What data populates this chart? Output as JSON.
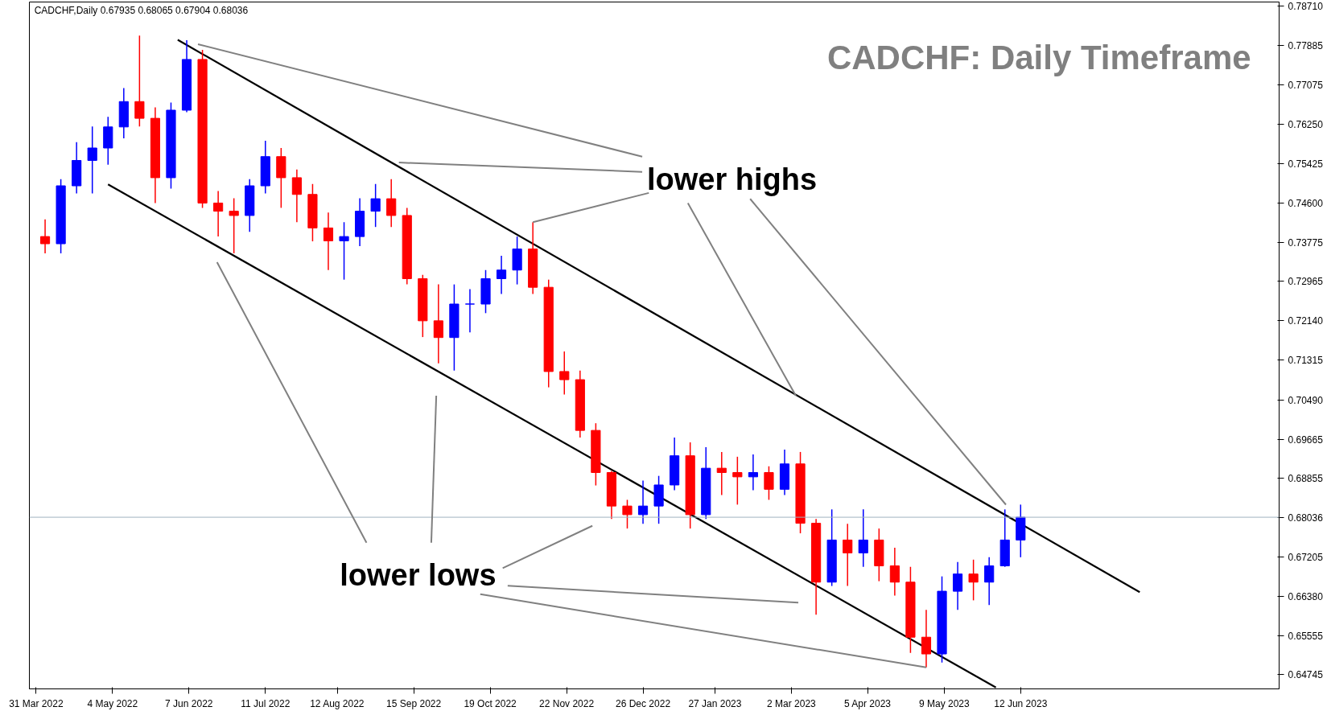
{
  "chart_data": {
    "type": "candlestick",
    "title": "CADCHF: Daily Timeframe",
    "annotations": [
      "CADCHF,Daily  0.67935 0.68065 0.67904 0.68036",
      {
        "text": "lower highs",
        "x": "2022-11-07",
        "y": 0.742
      },
      {
        "text": "lower lows",
        "x": "2023-05-01",
        "y": 0.649
      }
    ],
    "x": [
      "2022-04-04",
      "2022-04-11",
      "2022-04-18",
      "2022-04-25",
      "2022-05-02",
      "2022-05-09",
      "2022-05-16",
      "2022-05-23",
      "2022-05-30",
      "2022-06-06",
      "2022-06-13",
      "2022-06-20",
      "2022-06-27",
      "2022-07-04",
      "2022-07-11",
      "2022-07-18",
      "2022-07-25",
      "2022-08-01",
      "2022-08-08",
      "2022-08-15",
      "2022-08-22",
      "2022-08-29",
      "2022-09-05",
      "2022-09-12",
      "2022-09-19",
      "2022-09-26",
      "2022-10-03",
      "2022-10-10",
      "2022-10-17",
      "2022-10-24",
      "2022-10-31",
      "2022-11-07",
      "2022-11-14",
      "2022-11-21",
      "2022-11-28",
      "2022-12-05",
      "2022-12-12",
      "2022-12-19",
      "2022-12-26",
      "2023-01-02",
      "2023-01-09",
      "2023-01-16",
      "2023-01-23",
      "2023-01-30",
      "2023-02-06",
      "2023-02-13",
      "2023-02-20",
      "2023-02-27",
      "2023-03-06",
      "2023-03-13",
      "2023-03-20",
      "2023-03-27",
      "2023-04-03",
      "2023-04-10",
      "2023-04-17",
      "2023-04-24",
      "2023-05-01",
      "2023-05-08",
      "2023-05-15",
      "2023-05-22",
      "2023-05-29",
      "2023-06-05",
      "2023-06-12"
    ],
    "ohlc": [
      [
        0.739,
        0.7426,
        0.7355,
        0.7375
      ],
      [
        0.7375,
        0.751,
        0.7355,
        0.7496
      ],
      [
        0.7496,
        0.7587,
        0.748,
        0.7549
      ],
      [
        0.7549,
        0.762,
        0.748,
        0.7575
      ],
      [
        0.7575,
        0.764,
        0.754,
        0.7619
      ],
      [
        0.7619,
        0.77,
        0.7595,
        0.7672
      ],
      [
        0.7672,
        0.781,
        0.762,
        0.7637
      ],
      [
        0.7637,
        0.766,
        0.746,
        0.7513
      ],
      [
        0.7513,
        0.767,
        0.749,
        0.7654
      ],
      [
        0.7654,
        0.78,
        0.765,
        0.776
      ],
      [
        0.776,
        0.778,
        0.745,
        0.746
      ],
      [
        0.746,
        0.7485,
        0.739,
        0.7443
      ],
      [
        0.7443,
        0.747,
        0.7355,
        0.7434
      ],
      [
        0.7434,
        0.751,
        0.74,
        0.7496
      ],
      [
        0.7496,
        0.759,
        0.748,
        0.7557
      ],
      [
        0.7557,
        0.7575,
        0.745,
        0.7513
      ],
      [
        0.7513,
        0.753,
        0.742,
        0.7478
      ],
      [
        0.7478,
        0.75,
        0.738,
        0.7408
      ],
      [
        0.7408,
        0.744,
        0.732,
        0.7381
      ],
      [
        0.7381,
        0.742,
        0.73,
        0.739
      ],
      [
        0.739,
        0.747,
        0.737,
        0.7443
      ],
      [
        0.7443,
        0.75,
        0.741,
        0.7469
      ],
      [
        0.7469,
        0.751,
        0.741,
        0.7434
      ],
      [
        0.7434,
        0.745,
        0.729,
        0.7302
      ],
      [
        0.7302,
        0.731,
        0.718,
        0.7214
      ],
      [
        0.7214,
        0.729,
        0.7125,
        0.7179
      ],
      [
        0.7179,
        0.729,
        0.711,
        0.7249
      ],
      [
        0.7249,
        0.728,
        0.719,
        0.7249
      ],
      [
        0.7249,
        0.732,
        0.723,
        0.7302
      ],
      [
        0.7302,
        0.735,
        0.727,
        0.732
      ],
      [
        0.732,
        0.739,
        0.729,
        0.7364
      ],
      [
        0.7364,
        0.742,
        0.727,
        0.7284
      ],
      [
        0.7284,
        0.73,
        0.7075,
        0.7108
      ],
      [
        0.7108,
        0.715,
        0.706,
        0.7091
      ],
      [
        0.7091,
        0.711,
        0.697,
        0.6985
      ],
      [
        0.6985,
        0.7,
        0.687,
        0.6897
      ],
      [
        0.6897,
        0.69,
        0.68,
        0.6827
      ],
      [
        0.6827,
        0.684,
        0.678,
        0.6809
      ],
      [
        0.6809,
        0.688,
        0.679,
        0.6827
      ],
      [
        0.6827,
        0.689,
        0.679,
        0.6871
      ],
      [
        0.6871,
        0.697,
        0.686,
        0.6932
      ],
      [
        0.6932,
        0.696,
        0.678,
        0.6809
      ],
      [
        0.6809,
        0.695,
        0.68,
        0.6906
      ],
      [
        0.6906,
        0.694,
        0.685,
        0.6897
      ],
      [
        0.6897,
        0.693,
        0.683,
        0.6888
      ],
      [
        0.6888,
        0.6935,
        0.686,
        0.6897
      ],
      [
        0.6897,
        0.691,
        0.684,
        0.6862
      ],
      [
        0.6862,
        0.6945,
        0.685,
        0.6915
      ],
      [
        0.6915,
        0.694,
        0.677,
        0.6791
      ],
      [
        0.6791,
        0.68,
        0.66,
        0.6668
      ],
      [
        0.6668,
        0.682,
        0.666,
        0.6756
      ],
      [
        0.6756,
        0.679,
        0.666,
        0.6729
      ],
      [
        0.6729,
        0.682,
        0.67,
        0.6756
      ],
      [
        0.6756,
        0.678,
        0.667,
        0.6702
      ],
      [
        0.6702,
        0.674,
        0.664,
        0.6668
      ],
      [
        0.6668,
        0.67,
        0.652,
        0.6553
      ],
      [
        0.6553,
        0.661,
        0.649,
        0.6518
      ],
      [
        0.6518,
        0.668,
        0.65,
        0.6649
      ],
      [
        0.6649,
        0.671,
        0.661,
        0.6685
      ],
      [
        0.6685,
        0.6715,
        0.663,
        0.6668
      ],
      [
        0.6668,
        0.672,
        0.662,
        0.6702
      ],
      [
        0.6702,
        0.682,
        0.67,
        0.6756
      ],
      [
        0.6756,
        0.683,
        0.672,
        0.68036
      ]
    ],
    "colors": [
      "#ff0000",
      "#0000ff",
      "#0000ff",
      "#0000ff",
      "#0000ff",
      "#0000ff",
      "#ff0000",
      "#ff0000",
      "#0000ff",
      "#0000ff",
      "#ff0000",
      "#ff0000",
      "#ff0000",
      "#0000ff",
      "#0000ff",
      "#ff0000",
      "#ff0000",
      "#ff0000",
      "#ff0000",
      "#0000ff",
      "#0000ff",
      "#0000ff",
      "#ff0000",
      "#ff0000",
      "#ff0000",
      "#ff0000",
      "#0000ff",
      "#0000ff",
      "#0000ff",
      "#0000ff",
      "#0000ff",
      "#ff0000",
      "#ff0000",
      "#ff0000",
      "#ff0000",
      "#ff0000",
      "#ff0000",
      "#ff0000",
      "#0000ff",
      "#0000ff",
      "#0000ff",
      "#ff0000",
      "#0000ff",
      "#ff0000",
      "#ff0000",
      "#0000ff",
      "#ff0000",
      "#0000ff",
      "#ff0000",
      "#ff0000",
      "#0000ff",
      "#ff0000",
      "#0000ff",
      "#ff0000",
      "#ff0000",
      "#ff0000",
      "#ff0000",
      "#0000ff",
      "#0000ff",
      "#ff0000",
      "#0000ff",
      "#0000ff",
      "#0000ff"
    ],
    "series": [
      {
        "type": "line",
        "color": "#000000",
        "x": [
          "2022-06-02",
          "2023-08-04"
        ],
        "values": [
          0.7801,
          0.6647
        ]
      },
      {
        "type": "line",
        "color": "#000000",
        "x": [
          "2022-05-02",
          "2023-06-01"
        ],
        "values": [
          0.7499,
          0.6448
        ]
      }
    ],
    "ref_lines": [
      {
        "axis": "y",
        "value": 0.68036,
        "label": "0.68036",
        "color": "#a0b4c0"
      }
    ],
    "xlim": [
      "2022-03-28",
      "2023-10-05"
    ],
    "xticks": [
      {
        "value": "2022-03-31",
        "label": "31 Mar 2022"
      },
      {
        "value": "2022-05-04",
        "label": "4 May 2022"
      },
      {
        "value": "2022-06-07",
        "label": "7 Jun 2022"
      },
      {
        "value": "2022-07-11",
        "label": "11 Jul 2022"
      },
      {
        "value": "2022-08-12",
        "label": "12 Aug 2022"
      },
      {
        "value": "2022-09-15",
        "label": "15 Sep 2022"
      },
      {
        "value": "2022-10-19",
        "label": "19 Oct 2022"
      },
      {
        "value": "2022-11-22",
        "label": "22 Nov 2022"
      },
      {
        "value": "2022-12-26",
        "label": "26 Dec 2022"
      },
      {
        "value": "2023-01-27",
        "label": "27 Jan 2023"
      },
      {
        "value": "2023-03-02",
        "label": "2 Mar 2023"
      },
      {
        "value": "2023-04-05",
        "label": "5 Apr 2023"
      },
      {
        "value": "2023-05-09",
        "label": "9 May 2023"
      },
      {
        "value": "2023-06-12",
        "label": "12 Jun 2023"
      }
    ],
    "ylim": [
      0.6445,
      0.788
    ],
    "yticks": [
      {
        "value": 0.64745,
        "label": "0.64745"
      },
      {
        "value": 0.65555,
        "label": "0.65555"
      },
      {
        "value": 0.6638,
        "label": "0.66380"
      },
      {
        "value": 0.67205,
        "label": "0.67205"
      },
      {
        "value": 0.68855,
        "label": "0.68855"
      },
      {
        "value": 0.69665,
        "label": "0.69665"
      },
      {
        "value": 0.7049,
        "label": "0.70490"
      },
      {
        "value": 0.71315,
        "label": "0.71315"
      },
      {
        "value": 0.7214,
        "label": "0.72140"
      },
      {
        "value": 0.72965,
        "label": "0.72965"
      },
      {
        "value": 0.73775,
        "label": "0.73775"
      },
      {
        "value": 0.746,
        "label": "0.74600"
      },
      {
        "value": 0.75425,
        "label": "0.75425"
      },
      {
        "value": 0.7625,
        "label": "0.76250"
      },
      {
        "value": 0.77075,
        "label": "0.77075"
      },
      {
        "value": 0.77885,
        "label": "0.77885"
      },
      {
        "value": 0.7871,
        "label": "0.78710"
      }
    ],
    "grid": false
  }
}
